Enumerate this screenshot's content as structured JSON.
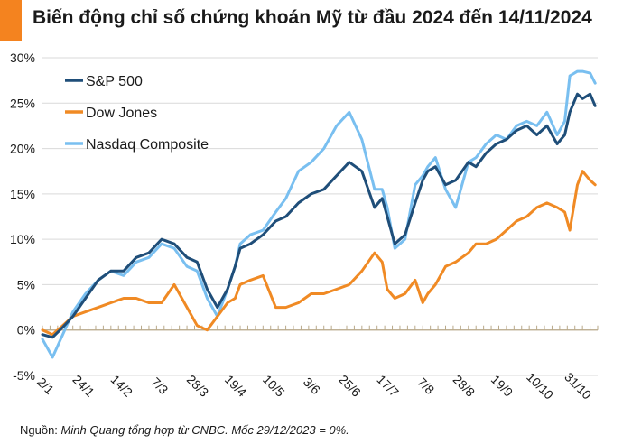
{
  "header": {
    "title": "Biến động chỉ số chứng khoán Mỹ từ đầu 2024 đến 14/11/2024"
  },
  "footer": {
    "source_prefix": "Nguồn: ",
    "source_text": "Minh Quang tổng hợp từ CNBC. Mốc 29/12/2023 = 0%."
  },
  "colors": {
    "sp500": "#1f4e79",
    "dow": "#f08a24",
    "nasdaq": "#79bff0",
    "accent": "#f4831f"
  },
  "chart_data": {
    "type": "line",
    "title": "Biến động chỉ số chứng khoán Mỹ từ đầu 2024 đến 14/11/2024",
    "xlabel": "",
    "ylabel": "",
    "ylim": [
      -5,
      30
    ],
    "y_ticks": [
      -5,
      0,
      5,
      10,
      15,
      20,
      25,
      30
    ],
    "y_tick_labels": [
      "-5%",
      "0%",
      "5%",
      "10%",
      "15%",
      "20%",
      "25%",
      "30%"
    ],
    "x_tick_labels": [
      "2/1",
      "24/1",
      "14/2",
      "7/3",
      "28/3",
      "19/4",
      "10/5",
      "3/6",
      "25/6",
      "17/7",
      "7/8",
      "28/8",
      "19/9",
      "10/10",
      "31/10"
    ],
    "x_tick_positions": [
      0,
      15,
      30,
      45,
      60,
      75,
      90,
      105,
      120,
      135,
      150,
      165,
      180,
      195,
      210
    ],
    "x_max": 219,
    "legend_position": "top-left",
    "series": [
      {
        "name": "S&P 500",
        "color": "#1f4e79",
        "x": [
          0,
          4,
          8,
          12,
          17,
          22,
          27,
          32,
          37,
          42,
          47,
          52,
          57,
          61,
          65,
          69,
          73,
          76,
          78,
          82,
          87,
          92,
          96,
          101,
          106,
          111,
          116,
          121,
          126,
          131,
          134,
          136,
          139,
          143,
          147,
          150,
          152,
          155,
          159,
          163,
          168,
          171,
          175,
          179,
          183,
          187,
          191,
          195,
          199,
          203,
          206,
          208,
          211,
          213,
          216,
          218
        ],
        "values": [
          -0.5,
          -0.8,
          0.3,
          1.5,
          3.5,
          5.5,
          6.5,
          6.5,
          8,
          8.5,
          10,
          9.5,
          8,
          7.5,
          4.5,
          2.5,
          4.5,
          7,
          9,
          9.5,
          10.5,
          12,
          12.5,
          14,
          15,
          15.5,
          17,
          18.5,
          17.5,
          13.5,
          14.5,
          12.5,
          9.5,
          10.5,
          14,
          16.5,
          17.5,
          18,
          16,
          16.5,
          18.5,
          18,
          19.5,
          20.5,
          21,
          22,
          22.5,
          21.5,
          22.5,
          20.5,
          21.5,
          24,
          26,
          25.5,
          26,
          24.7
        ]
      },
      {
        "name": "Dow Jones",
        "color": "#f08a24",
        "x": [
          0,
          4,
          8,
          12,
          17,
          22,
          27,
          32,
          37,
          42,
          47,
          52,
          57,
          61,
          65,
          69,
          73,
          76,
          78,
          82,
          87,
          92,
          96,
          101,
          106,
          111,
          116,
          121,
          126,
          131,
          134,
          136,
          139,
          143,
          147,
          150,
          152,
          155,
          159,
          163,
          168,
          171,
          175,
          179,
          183,
          187,
          191,
          195,
          199,
          203,
          206,
          208,
          211,
          213,
          216,
          218
        ],
        "values": [
          0,
          -0.5,
          0.5,
          1.5,
          2,
          2.5,
          3,
          3.5,
          3.5,
          3,
          3,
          5,
          2.5,
          0.5,
          0,
          1.5,
          3,
          3.5,
          5,
          5.5,
          6,
          2.5,
          2.5,
          3,
          4,
          4,
          4.5,
          5,
          6.5,
          8.5,
          7.5,
          4.5,
          3.5,
          4,
          5.5,
          3,
          4,
          5,
          7,
          7.5,
          8.5,
          9.5,
          9.5,
          10,
          11,
          12,
          12.5,
          13.5,
          14,
          13.5,
          13,
          11,
          16,
          17.5,
          16.5,
          16
        ]
      },
      {
        "name": "Nasdaq Composite",
        "color": "#79bff0",
        "x": [
          0,
          4,
          8,
          12,
          17,
          22,
          27,
          32,
          37,
          42,
          47,
          52,
          57,
          61,
          65,
          69,
          73,
          76,
          78,
          82,
          87,
          92,
          96,
          101,
          106,
          111,
          116,
          121,
          126,
          131,
          134,
          136,
          139,
          143,
          147,
          150,
          152,
          155,
          159,
          163,
          168,
          171,
          175,
          179,
          183,
          187,
          191,
          195,
          199,
          203,
          206,
          208,
          211,
          213,
          216,
          218
        ],
        "values": [
          -1,
          -3,
          -0.5,
          2,
          4,
          5.5,
          6.5,
          6,
          7.5,
          8,
          9.5,
          9,
          7,
          6.5,
          3.5,
          1.5,
          4.5,
          7,
          9.5,
          10.5,
          11,
          13,
          14.5,
          17.5,
          18.5,
          20,
          22.5,
          24,
          21,
          15.5,
          15.5,
          13.5,
          9,
          10,
          16,
          17,
          18,
          19,
          15.5,
          13.5,
          18.5,
          19,
          20.5,
          21.5,
          21,
          22.5,
          23,
          22.5,
          24,
          21.5,
          23,
          28,
          28.5,
          28.5,
          28.3,
          27.2
        ]
      }
    ]
  }
}
